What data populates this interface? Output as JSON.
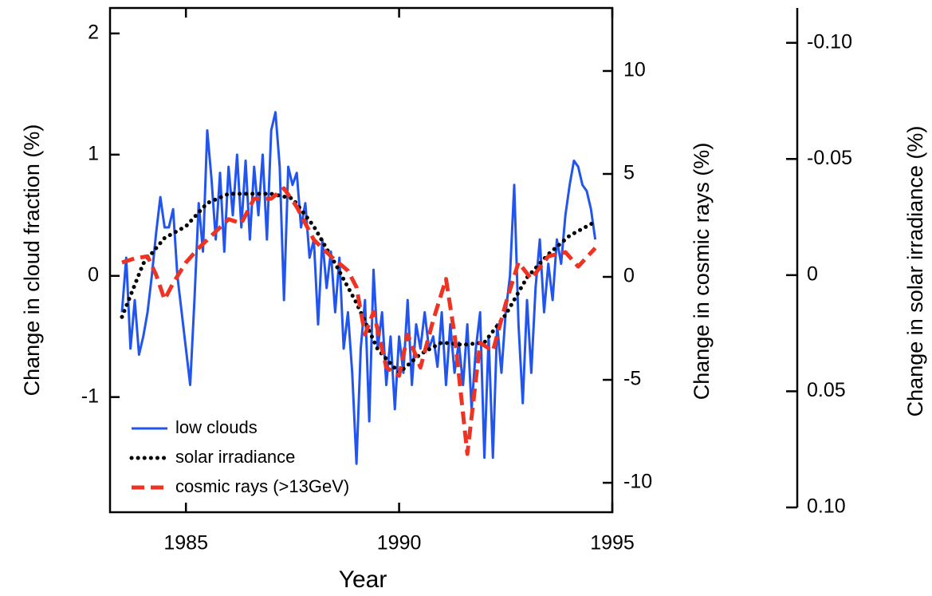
{
  "chart_data": {
    "type": "line",
    "xlabel": "Year",
    "ylabel": "Change in cloud fraction (%)",
    "y2label": "Change in cosmic rays (%)",
    "y3label": "Change in solar irradiance (%)",
    "xlim": [
      1983.22,
      1995
    ],
    "xticks": [
      1985,
      1990,
      1995
    ],
    "ylim": [
      -1.95,
      2.21
    ],
    "yticks": [
      -1,
      0,
      1,
      2
    ],
    "y2lim": [
      -11.43,
      13.06
    ],
    "y2ticks": [
      -10,
      -5,
      0,
      5,
      10
    ],
    "y3lim": [
      0.1,
      -0.115
    ],
    "y3ticks": [
      {
        "value": 0.1,
        "label": "0.10"
      },
      0.05,
      0,
      -0.05,
      {
        "value": -0.1,
        "label": "-0.10"
      }
    ],
    "legend": "lower left",
    "series": [
      {
        "name": "low clouds",
        "color": "#2255ee",
        "style": "solid",
        "axis": "y",
        "x": [
          1983.5,
          1983.6,
          1983.7,
          1983.8,
          1983.9,
          1984.0,
          1984.1,
          1984.2,
          1984.3,
          1984.4,
          1984.5,
          1984.6,
          1984.7,
          1984.8,
          1984.9,
          1985.0,
          1985.1,
          1985.2,
          1985.3,
          1985.4,
          1985.5,
          1985.6,
          1985.7,
          1985.8,
          1985.9,
          1986.0,
          1986.1,
          1986.2,
          1986.3,
          1986.4,
          1986.5,
          1986.6,
          1986.7,
          1986.8,
          1986.9,
          1987.0,
          1987.1,
          1987.2,
          1987.3,
          1987.4,
          1987.5,
          1987.6,
          1987.7,
          1987.8,
          1987.9,
          1988.0,
          1988.1,
          1988.2,
          1988.3,
          1988.4,
          1988.5,
          1988.6,
          1988.7,
          1988.8,
          1988.9,
          1989.0,
          1989.1,
          1989.2,
          1989.3,
          1989.4,
          1989.5,
          1989.6,
          1989.7,
          1989.8,
          1989.9,
          1990.0,
          1990.1,
          1990.2,
          1990.3,
          1990.4,
          1990.5,
          1990.6,
          1990.7,
          1990.8,
          1990.9,
          1991.0,
          1991.1,
          1991.2,
          1991.3,
          1991.4,
          1991.5,
          1991.6,
          1991.7,
          1991.8,
          1991.9,
          1992.0,
          1992.1,
          1992.2,
          1992.3,
          1992.4,
          1992.5,
          1992.6,
          1992.7,
          1992.8,
          1992.9,
          1993.0,
          1993.1,
          1993.2,
          1993.3,
          1993.4,
          1993.5,
          1993.6,
          1993.7,
          1993.8,
          1993.9,
          1994.0,
          1994.1,
          1994.2,
          1994.3,
          1994.4,
          1994.5,
          1994.6
        ],
        "values": [
          -0.3,
          0.15,
          -0.6,
          -0.2,
          -0.65,
          -0.5,
          -0.3,
          0.0,
          0.35,
          0.65,
          0.4,
          0.4,
          0.55,
          0.0,
          -0.3,
          -0.6,
          -0.9,
          -0.2,
          0.6,
          0.2,
          1.2,
          0.8,
          0.3,
          0.85,
          0.2,
          0.9,
          0.5,
          1.0,
          0.4,
          0.95,
          0.3,
          0.9,
          0.5,
          1.0,
          0.3,
          1.2,
          1.35,
          0.9,
          -0.2,
          0.9,
          0.75,
          0.85,
          0.4,
          0.6,
          0.15,
          0.3,
          -0.4,
          0.3,
          -0.1,
          0.2,
          -0.3,
          0.15,
          -0.6,
          -0.3,
          -0.8,
          -1.55,
          -0.6,
          -0.2,
          -1.2,
          0.05,
          -0.6,
          -0.3,
          -0.9,
          -0.5,
          -1.1,
          -0.5,
          -0.8,
          -0.2,
          -0.9,
          -0.4,
          -0.6,
          -0.3,
          -0.6,
          -0.5,
          -0.75,
          -0.3,
          -0.9,
          -0.4,
          -0.8,
          -0.55,
          -0.9,
          -0.4,
          -1.1,
          -0.6,
          -0.3,
          -1.5,
          -0.5,
          -1.5,
          -0.4,
          -0.8,
          -0.3,
          0.0,
          0.75,
          -0.4,
          -1.05,
          -0.2,
          -0.8,
          -0.1,
          0.3,
          -0.3,
          0.1,
          -0.2,
          0.3,
          0.1,
          0.5,
          0.75,
          0.95,
          0.9,
          0.75,
          0.7,
          0.55,
          0.3
        ]
      },
      {
        "name": "solar irradiance",
        "color": "#000000",
        "style": "dotted",
        "axis": "y3",
        "x": [
          1983.5,
          1984.0,
          1984.5,
          1985.0,
          1985.5,
          1986.0,
          1986.5,
          1987.0,
          1987.5,
          1988.0,
          1988.5,
          1989.0,
          1989.5,
          1990.0,
          1990.5,
          1991.0,
          1991.5,
          1992.0,
          1992.5,
          1993.0,
          1993.5,
          1994.0,
          1994.6
        ],
        "values": [
          0.018,
          -0.005,
          -0.016,
          -0.021,
          -0.031,
          -0.035,
          -0.035,
          -0.035,
          -0.033,
          -0.021,
          -0.005,
          0.012,
          0.032,
          0.042,
          0.034,
          0.029,
          0.03,
          0.029,
          0.017,
          0.001,
          -0.009,
          -0.017,
          -0.023
        ]
      },
      {
        "name": "cosmic rays (>13GeV)",
        "color": "#ee3322",
        "style": "dashed",
        "axis": "y2",
        "x": [
          1983.5,
          1983.8,
          1984.1,
          1984.3,
          1984.5,
          1984.7,
          1985.0,
          1985.3,
          1985.6,
          1986.0,
          1986.3,
          1986.6,
          1987.0,
          1987.3,
          1987.6,
          1988.0,
          1988.4,
          1988.8,
          1989.0,
          1989.2,
          1989.4,
          1989.7,
          1990.0,
          1990.2,
          1990.5,
          1990.8,
          1991.1,
          1991.3,
          1991.6,
          1991.9,
          1992.2,
          1992.5,
          1992.8,
          1993.1,
          1993.5,
          1993.9,
          1994.2,
          1994.6
        ],
        "values": [
          0.7,
          0.9,
          1.0,
          0.1,
          -1.1,
          -0.3,
          0.7,
          1.4,
          2.0,
          2.8,
          2.6,
          3.8,
          3.8,
          4.3,
          3.4,
          1.8,
          1.0,
          0.3,
          -0.5,
          -2.8,
          -1.7,
          -4.4,
          -4.8,
          -2.8,
          -4.4,
          -2.1,
          -0.1,
          -2.8,
          -8.6,
          -3.2,
          -3.6,
          -1.3,
          0.7,
          -0.1,
          1.0,
          1.2,
          0.5,
          1.4
        ]
      }
    ]
  }
}
